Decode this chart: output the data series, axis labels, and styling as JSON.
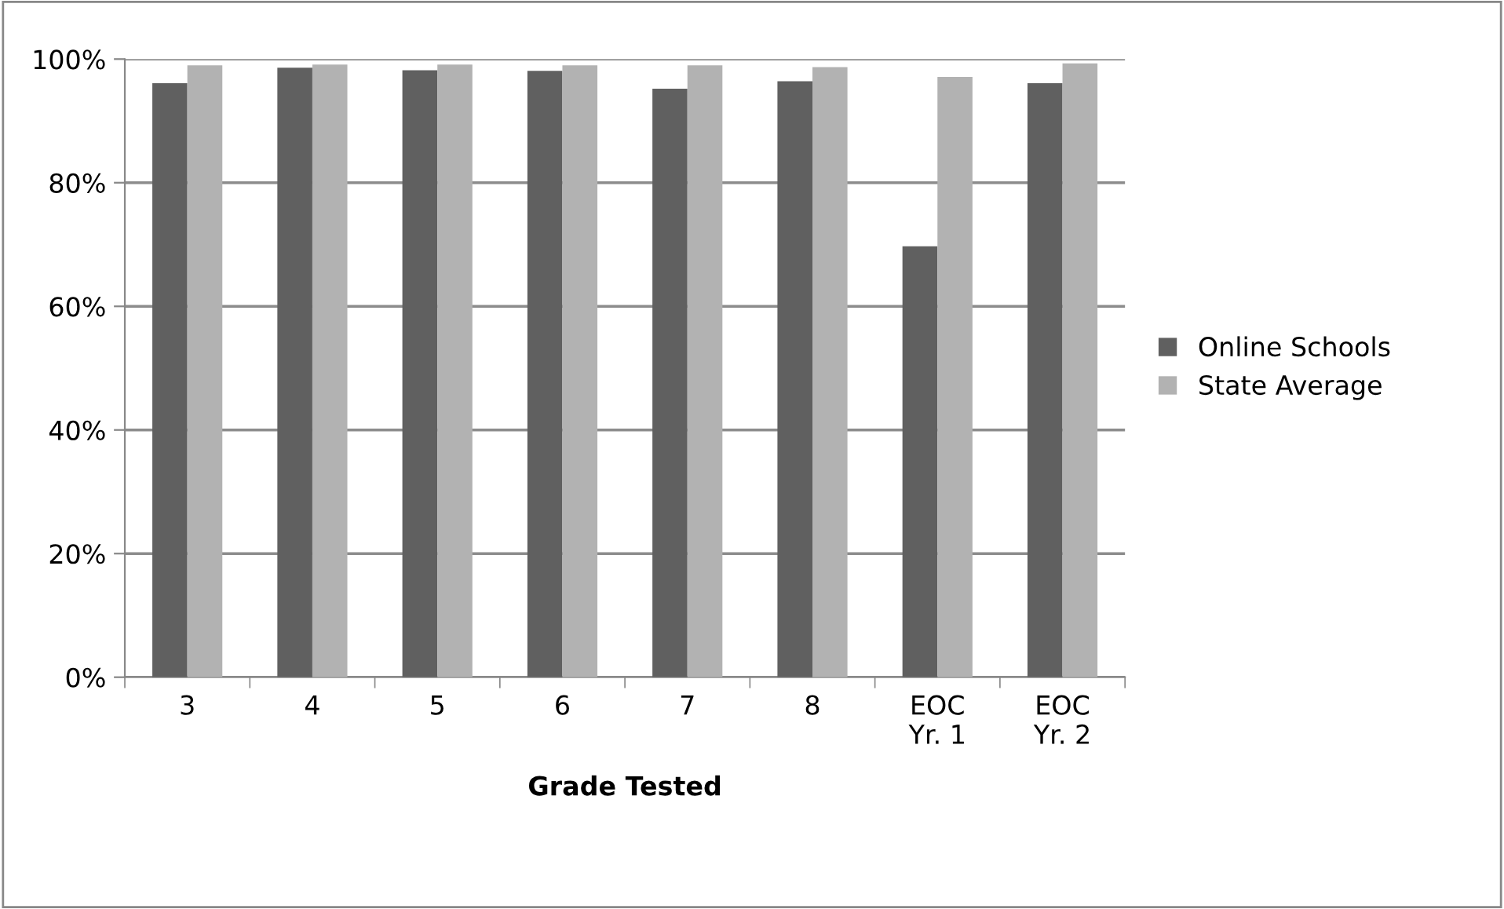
{
  "chart_data": {
    "type": "bar",
    "xlabel": "Grade Tested",
    "categories": [
      "3",
      "4",
      "5",
      "6",
      "7",
      "8",
      "EOC\nYr. 1",
      "EOC\nYr. 2"
    ],
    "series": [
      {
        "name": "Online Schools",
        "color": "#606060",
        "values": [
          96.1,
          98.6,
          98.2,
          98.1,
          95.2,
          96.4,
          69.7,
          96.1
        ]
      },
      {
        "name": "State Average",
        "color": "#b2b2b2",
        "values": [
          99.0,
          99.1,
          99.1,
          99.0,
          99.0,
          98.7,
          97.1,
          99.3
        ]
      }
    ],
    "ylim": [
      0,
      100
    ],
    "yticks": [
      {
        "value": 0,
        "label": "0%"
      },
      {
        "value": 20,
        "label": "20%"
      },
      {
        "value": 40,
        "label": "40%"
      },
      {
        "value": 60,
        "label": "60%"
      },
      {
        "value": 80,
        "label": "80%"
      },
      {
        "value": 100,
        "label": "100%"
      }
    ],
    "grid": "y",
    "legend": "right"
  }
}
